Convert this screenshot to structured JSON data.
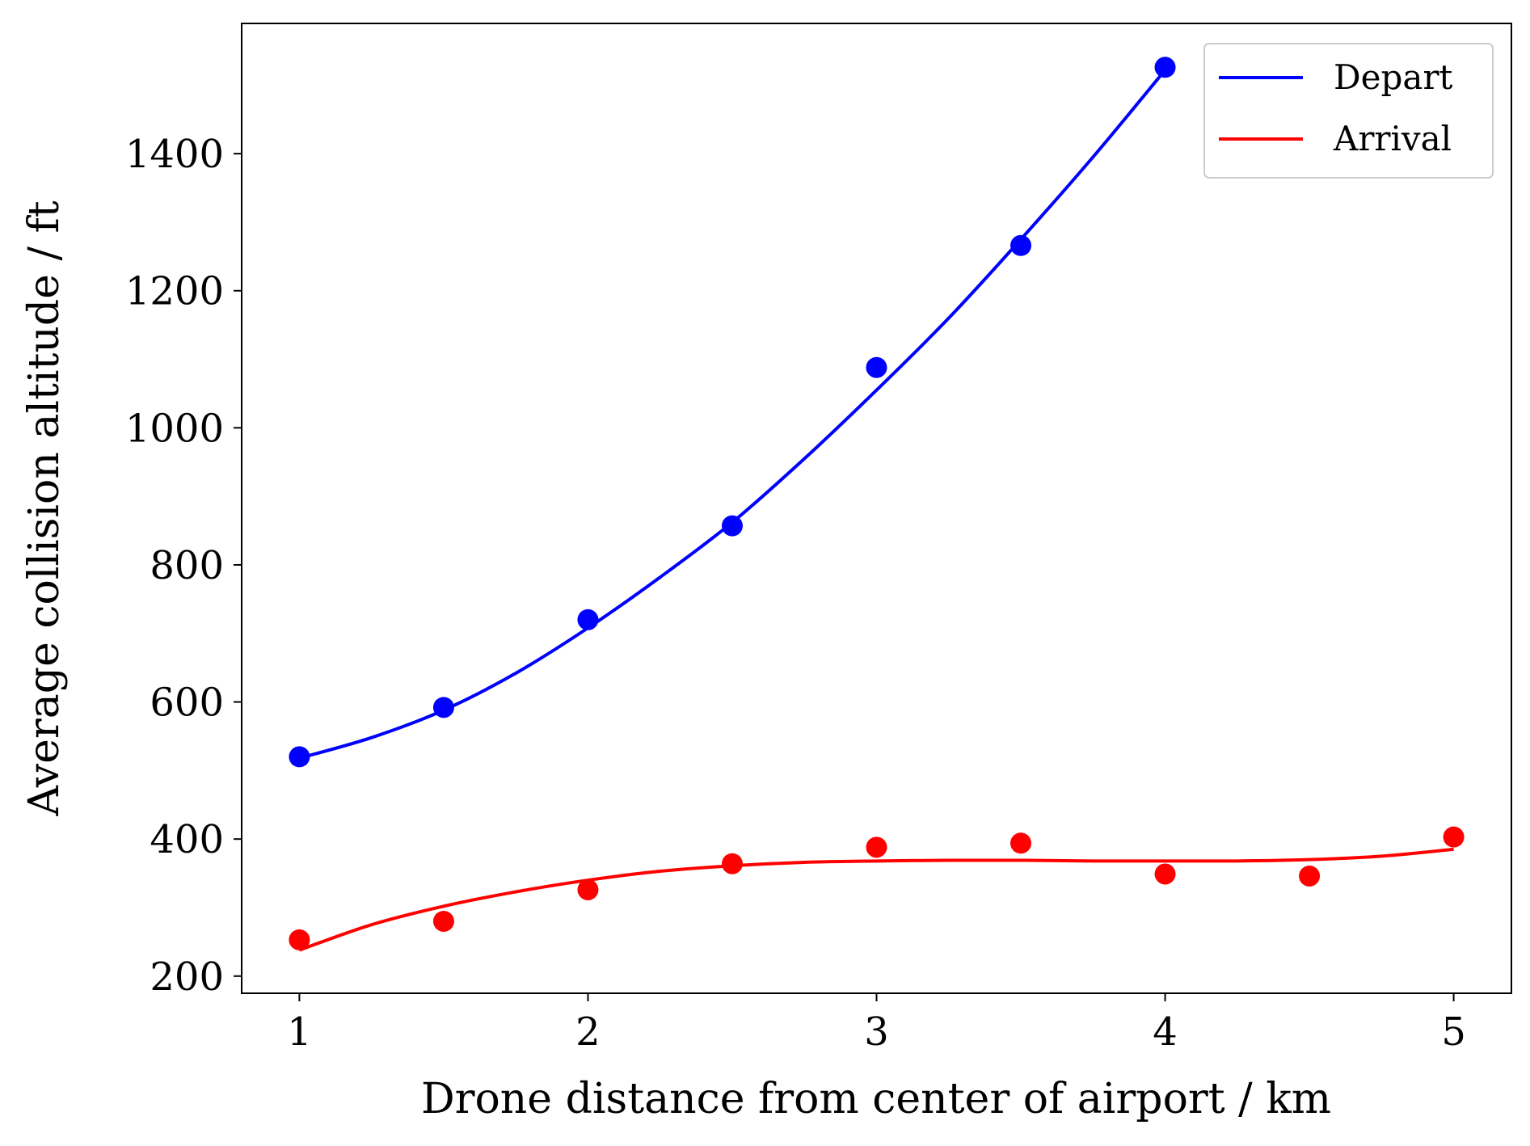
{
  "chart_data": {
    "type": "line",
    "xlabel": "Drone distance from center of airport / km",
    "ylabel": "Average collision altitude / ft",
    "xlim": [
      0.8,
      5.2
    ],
    "ylim": [
      175,
      1590
    ],
    "xticks": [
      1,
      2,
      3,
      4,
      5
    ],
    "yticks": [
      200,
      400,
      600,
      800,
      1000,
      1200,
      1400
    ],
    "grid": false,
    "legend_position": "top-right",
    "series": [
      {
        "name": "Depart",
        "color": "#0000ff",
        "points": {
          "x": [
            1.0,
            1.5,
            2.0,
            2.5,
            3.0,
            3.5,
            4.0
          ],
          "y": [
            520,
            592,
            720,
            857,
            1088,
            1266,
            1526
          ]
        },
        "fit": {
          "x": [
            1.0,
            1.25,
            1.5,
            1.75,
            2.0,
            2.25,
            2.5,
            2.75,
            3.0,
            3.25,
            3.5,
            3.75,
            4.0
          ],
          "y": [
            518,
            548,
            588,
            642,
            708,
            782,
            862,
            955,
            1055,
            1160,
            1275,
            1395,
            1522
          ]
        }
      },
      {
        "name": "Arrival",
        "color": "#ff0000",
        "points": {
          "x": [
            1.0,
            1.5,
            2.0,
            2.5,
            3.0,
            3.5,
            4.0,
            4.5,
            5.0
          ],
          "y": [
            253,
            280,
            326,
            364,
            388,
            394,
            349,
            346,
            403
          ]
        },
        "fit": {
          "x": [
            1.0,
            1.25,
            1.5,
            1.75,
            2.0,
            2.25,
            2.5,
            2.75,
            3.0,
            3.25,
            3.5,
            3.75,
            4.0,
            4.25,
            4.5,
            4.75,
            5.0
          ],
          "y": [
            238,
            275,
            302,
            323,
            340,
            353,
            361,
            366,
            368,
            369,
            369,
            368,
            368,
            368,
            370,
            375,
            385
          ]
        }
      }
    ]
  }
}
